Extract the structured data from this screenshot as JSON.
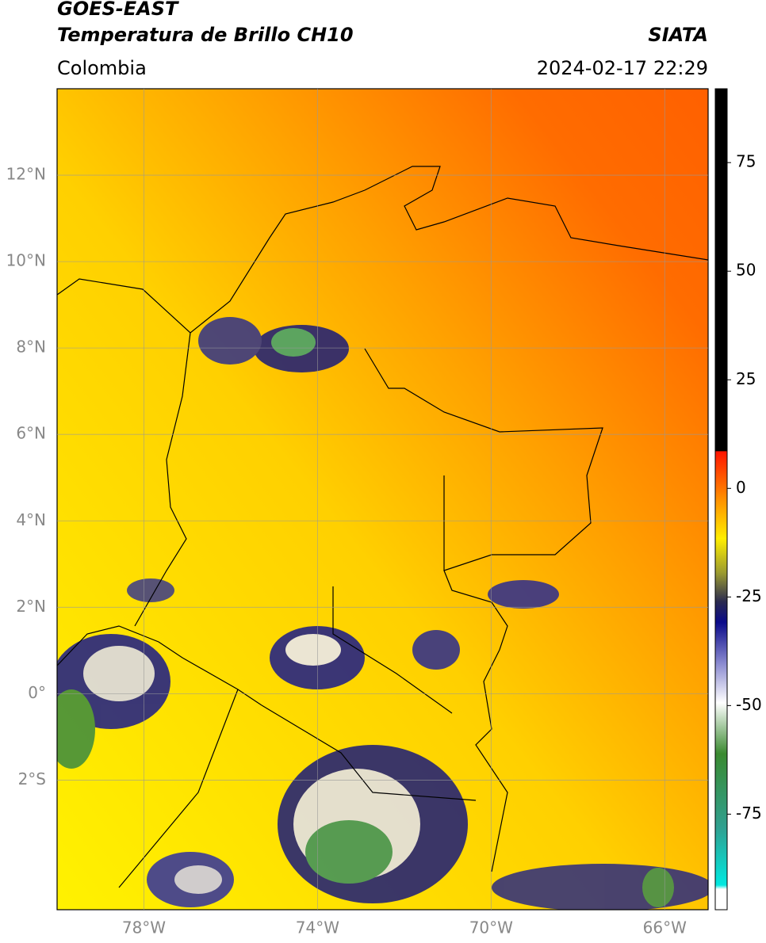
{
  "header": {
    "title_line1": "GOES-EAST",
    "title_line2": "Temperatura de Brillo CH10",
    "source": "SIATA",
    "region": "Colombia",
    "datetime": "2024-02-17 22:29"
  },
  "map": {
    "latlim": [
      -5,
      14
    ],
    "lonlim": [
      -80,
      -65
    ],
    "lat_ticks": [
      {
        "value": 12,
        "label": "12°N"
      },
      {
        "value": 10,
        "label": "10°N"
      },
      {
        "value": 8,
        "label": "8°N"
      },
      {
        "value": 6,
        "label": "6°N"
      },
      {
        "value": 4,
        "label": "4°N"
      },
      {
        "value": 2,
        "label": "2°N"
      },
      {
        "value": 0,
        "label": "0°"
      },
      {
        "value": -2,
        "label": "2°S"
      }
    ],
    "lon_ticks": [
      {
        "value": -78,
        "label": "78°W"
      },
      {
        "value": -74,
        "label": "74°W"
      },
      {
        "value": -70,
        "label": "70°W"
      },
      {
        "value": -66,
        "label": "66°W"
      }
    ]
  },
  "colorbar": {
    "clim": [
      -97,
      92
    ],
    "ticks": [
      75,
      50,
      25,
      0,
      -25,
      -50,
      -75
    ]
  }
}
